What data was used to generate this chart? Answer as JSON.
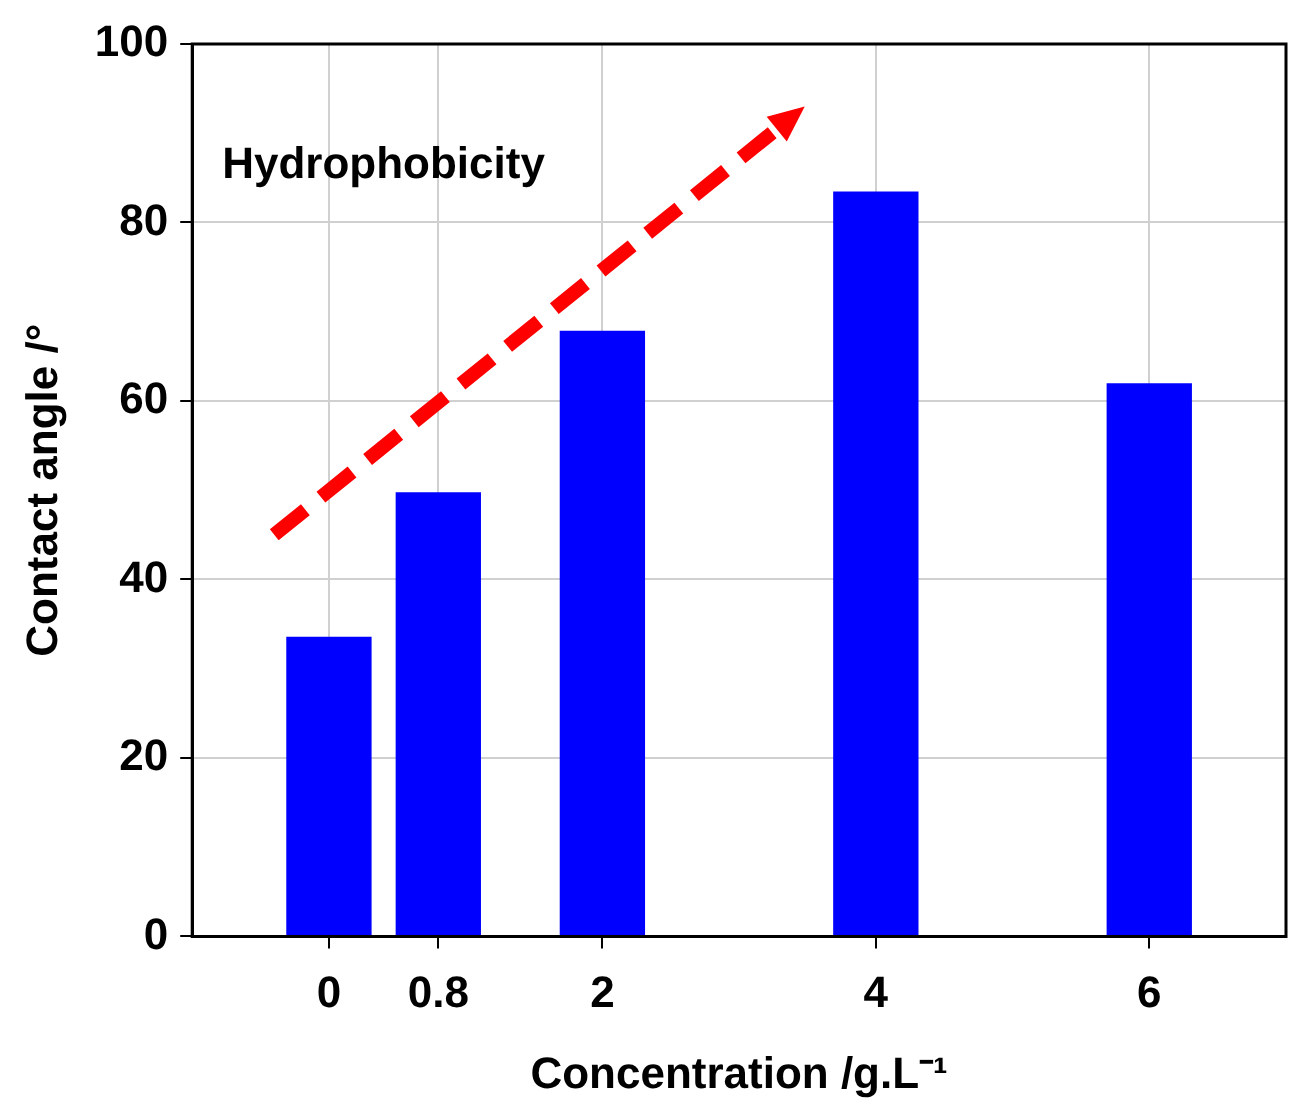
{
  "chart_data": {
    "type": "bar",
    "xlabel": "Concentration /g.L⁻¹",
    "ylabel": "Contact angle /°",
    "x": [
      0,
      0.8,
      2,
      4,
      6
    ],
    "values": [
      33.5,
      49.7,
      67.8,
      83.4,
      61.9
    ],
    "color": "#0000ff",
    "xlim": [
      -1,
      7
    ],
    "xticks": [
      0,
      0.8,
      2,
      4,
      6
    ],
    "ylim": [
      0,
      100
    ],
    "yticks": [
      0,
      20,
      40,
      60,
      80,
      100
    ],
    "grid": true,
    "legend": false,
    "annotations": [
      "Hydrophobicity"
    ]
  }
}
